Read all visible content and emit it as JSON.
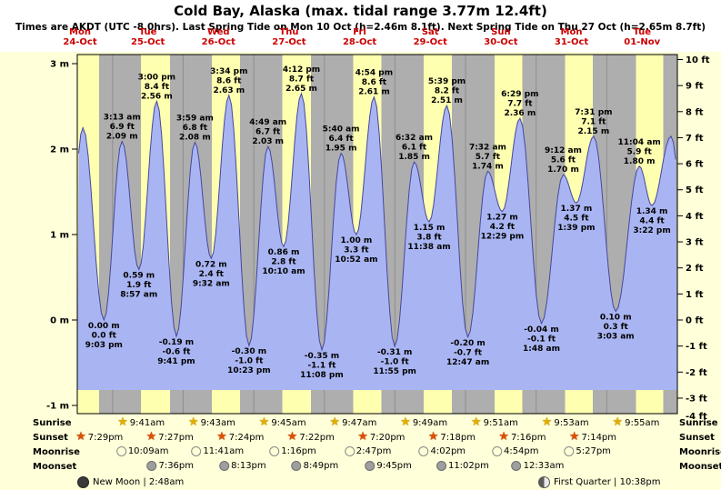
{
  "title": "Cold Bay, Alaska (max. tidal range 3.77m 12.4ft)",
  "subtitle": "Times are AKDT (UTC -8.0hrs). Last Spring Tide on Mon 10 Oct (h=2.46m 8.1ft). Next Spring Tide on Thu 27 Oct (h=2.65m 8.7ft)",
  "colors": {
    "background": "#ffffd9",
    "day_band": "#ffffb0",
    "night_band": "#aeaeae",
    "tide_fill": "#a9b5f2",
    "tide_stroke": "#46469e",
    "date_color": "#cc0000",
    "sunrise_star": "#e2ae00",
    "sunset_star": "#e04e00"
  },
  "chart_data": {
    "type": "area",
    "title": "Cold Bay, Alaska (max. tidal range 3.77m 12.4ft)",
    "ylabel_left": "meters",
    "ylabel_right": "feet",
    "ylim_m": [
      -1.1,
      3.1
    ],
    "ylim_ft": [
      -4,
      10
    ],
    "grid": "day-night bands (yellow = daylight, gray = night)",
    "meter_ticks": [
      3,
      2,
      1,
      0,
      -1
    ],
    "feet_ticks": [
      10,
      9,
      8,
      7,
      6,
      5,
      4,
      3,
      2,
      1,
      0,
      -1,
      -2,
      -3,
      -4
    ],
    "days": [
      {
        "dow": "Mon",
        "date": "24-Oct"
      },
      {
        "dow": "Tue",
        "date": "25-Oct"
      },
      {
        "dow": "Wed",
        "date": "26-Oct"
      },
      {
        "dow": "Thu",
        "date": "27-Oct"
      },
      {
        "dow": "Fri",
        "date": "28-Oct"
      },
      {
        "dow": "Sat",
        "date": "29-Oct"
      },
      {
        "dow": "Sun",
        "date": "30-Oct"
      },
      {
        "dow": "Mon",
        "date": "31-Oct"
      },
      {
        "dow": "Tue",
        "date": "01-Nov"
      }
    ],
    "events": [
      {
        "day": 0,
        "time": "8:05 am",
        "type": "low",
        "m": 0.2,
        "labeled": false,
        "estimated": true
      },
      {
        "day": 0,
        "time": "1:55 pm",
        "type": "high",
        "m": 2.25,
        "labeled": false,
        "estimated": true
      },
      {
        "day": 0,
        "time": "9:03 pm",
        "type": "low",
        "m": 0.0,
        "ft": 0.0
      },
      {
        "day": 1,
        "time": "3:13 am",
        "type": "high",
        "m": 2.09,
        "ft": 6.9
      },
      {
        "day": 1,
        "time": "8:57 am",
        "type": "low",
        "m": 0.59,
        "ft": 1.9
      },
      {
        "day": 1,
        "time": "3:00 pm",
        "type": "high",
        "m": 2.56,
        "ft": 8.4
      },
      {
        "day": 1,
        "time": "9:41 pm",
        "type": "low",
        "m": -0.19,
        "ft": -0.6
      },
      {
        "day": 2,
        "time": "3:59 am",
        "type": "high",
        "m": 2.08,
        "ft": 6.8
      },
      {
        "day": 2,
        "time": "9:32 am",
        "type": "low",
        "m": 0.72,
        "ft": 2.4
      },
      {
        "day": 2,
        "time": "3:34 pm",
        "type": "high",
        "m": 2.63,
        "ft": 8.6
      },
      {
        "day": 2,
        "time": "10:23 pm",
        "type": "low",
        "m": -0.3,
        "ft": -1.0
      },
      {
        "day": 3,
        "time": "4:49 am",
        "type": "high",
        "m": 2.03,
        "ft": 6.7
      },
      {
        "day": 3,
        "time": "10:10 am",
        "type": "low",
        "m": 0.86,
        "ft": 2.8
      },
      {
        "day": 3,
        "time": "4:12 pm",
        "type": "high",
        "m": 2.65,
        "ft": 8.7
      },
      {
        "day": 3,
        "time": "11:08 pm",
        "type": "low",
        "m": -0.35,
        "ft": -1.1
      },
      {
        "day": 4,
        "time": "5:40 am",
        "type": "high",
        "m": 1.95,
        "ft": 6.4
      },
      {
        "day": 4,
        "time": "10:52 am",
        "type": "low",
        "m": 1.0,
        "ft": 3.3
      },
      {
        "day": 4,
        "time": "4:54 pm",
        "type": "high",
        "m": 2.61,
        "ft": 8.6
      },
      {
        "day": 4,
        "time": "11:55 pm",
        "type": "low",
        "m": -0.31,
        "ft": -1.0
      },
      {
        "day": 5,
        "time": "6:32 am",
        "type": "high",
        "m": 1.85,
        "ft": 6.1
      },
      {
        "day": 5,
        "time": "11:38 am",
        "type": "low",
        "m": 1.15,
        "ft": 3.8
      },
      {
        "day": 5,
        "time": "5:39 pm",
        "type": "high",
        "m": 2.51,
        "ft": 8.2
      },
      {
        "day": 6,
        "time": "12:47 am",
        "type": "low",
        "m": -0.2,
        "ft": -0.7
      },
      {
        "day": 6,
        "time": "7:32 am",
        "type": "high",
        "m": 1.74,
        "ft": 5.7
      },
      {
        "day": 6,
        "time": "12:29 pm",
        "type": "low",
        "m": 1.27,
        "ft": 4.2
      },
      {
        "day": 6,
        "time": "6:29 pm",
        "type": "high",
        "m": 2.36,
        "ft": 7.7
      },
      {
        "day": 7,
        "time": "1:48 am",
        "type": "low",
        "m": -0.04,
        "ft": -0.1
      },
      {
        "day": 7,
        "time": "9:12 am",
        "type": "high",
        "m": 1.7,
        "ft": 5.6
      },
      {
        "day": 7,
        "time": "1:39 pm",
        "type": "low",
        "m": 1.37,
        "ft": 4.5
      },
      {
        "day": 7,
        "time": "7:31 pm",
        "type": "high",
        "m": 2.15,
        "ft": 7.1
      },
      {
        "day": 8,
        "time": "3:03 am",
        "type": "low",
        "m": 0.1,
        "ft": 0.3
      },
      {
        "day": 8,
        "time": "11:04 am",
        "type": "high",
        "m": 1.8,
        "ft": 5.9
      },
      {
        "day": 8,
        "time": "3:22 pm",
        "type": "low",
        "m": 1.34,
        "ft": 4.4
      },
      {
        "day": 8,
        "time": "9:50 pm",
        "type": "high",
        "m": 2.15,
        "labeled": false,
        "estimated": true
      },
      {
        "day": 9,
        "time": "4:10 am",
        "type": "low",
        "m": 0.3,
        "labeled": false,
        "estimated": true
      }
    ],
    "sun_moon": {
      "rows": [
        {
          "id": "sunrise",
          "label": "Sunrise",
          "icon": "sunrise-star-icon",
          "icon_type": "star",
          "entries": [
            {
              "day": 1,
              "time": "9:41am"
            },
            {
              "day": 2,
              "time": "9:43am"
            },
            {
              "day": 3,
              "time": "9:45am"
            },
            {
              "day": 4,
              "time": "9:47am"
            },
            {
              "day": 5,
              "time": "9:49am"
            },
            {
              "day": 6,
              "time": "9:51am"
            },
            {
              "day": 7,
              "time": "9:53am"
            },
            {
              "day": 8,
              "time": "9:55am"
            }
          ]
        },
        {
          "id": "sunset",
          "label": "Sunset",
          "icon": "sunset-star-icon",
          "icon_type": "star",
          "entries": [
            {
              "day": 0,
              "time": "7:29pm"
            },
            {
              "day": 1,
              "time": "7:27pm"
            },
            {
              "day": 2,
              "time": "7:24pm"
            },
            {
              "day": 3,
              "time": "7:22pm"
            },
            {
              "day": 4,
              "time": "7:20pm"
            },
            {
              "day": 5,
              "time": "7:18pm"
            },
            {
              "day": 6,
              "time": "7:16pm"
            },
            {
              "day": 7,
              "time": "7:14pm"
            }
          ]
        },
        {
          "id": "moonrise",
          "label": "Moonrise",
          "icon": "moonrise-circle-icon",
          "icon_type": "circle",
          "entries": [
            {
              "day": 1,
              "time": "10:09am"
            },
            {
              "day": 2,
              "time": "11:41am"
            },
            {
              "day": 3,
              "time": "1:16pm"
            },
            {
              "day": 4,
              "time": "2:47pm"
            },
            {
              "day": 5,
              "time": "4:02pm"
            },
            {
              "day": 6,
              "time": "4:54pm"
            },
            {
              "day": 7,
              "time": "5:27pm"
            }
          ]
        },
        {
          "id": "moonset",
          "label": "Moonset",
          "icon": "moonset-circle-icon",
          "icon_type": "circle",
          "entries": [
            {
              "day": 1,
              "time": "7:36pm"
            },
            {
              "day": 2,
              "time": "8:13pm"
            },
            {
              "day": 3,
              "time": "8:49pm"
            },
            {
              "day": 4,
              "time": "9:45pm"
            },
            {
              "day": 5,
              "time": "11:02pm"
            },
            {
              "day": 7,
              "time": "12:33am"
            }
          ]
        }
      ],
      "phases": [
        {
          "name": "New Moon",
          "time": "2:48am"
        },
        {
          "name": "First Quarter",
          "time": "10:38pm"
        }
      ]
    }
  }
}
